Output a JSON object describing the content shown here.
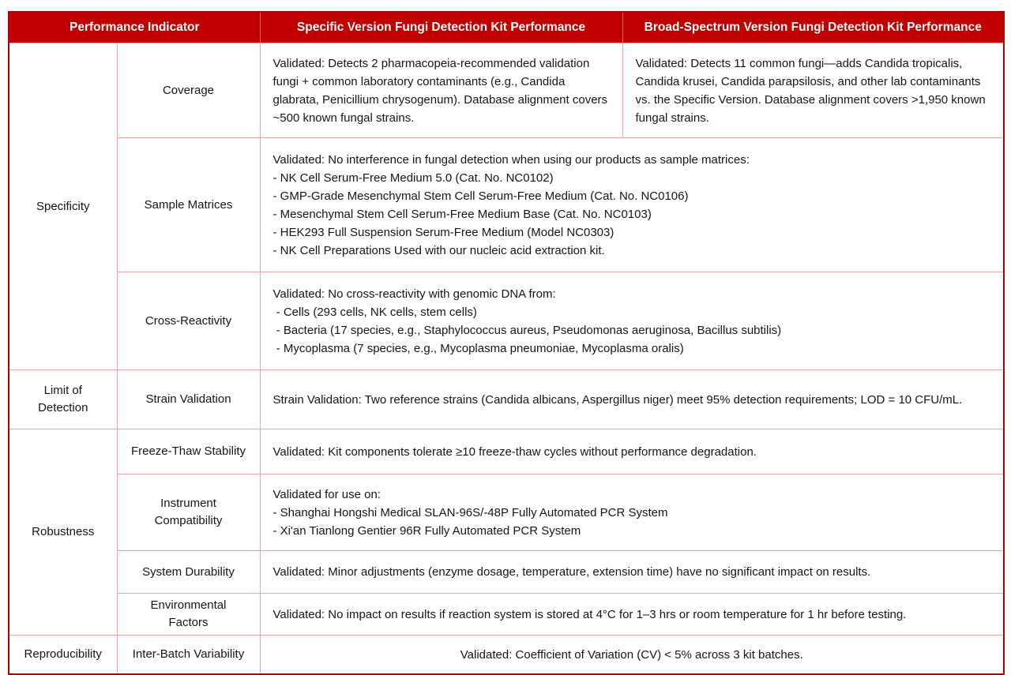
{
  "colors": {
    "header_bg": "#c00000",
    "header_text": "#ffffff",
    "outer_border": "#b00000",
    "inner_border": "#f2a3a3",
    "body_text": "#151515"
  },
  "header": {
    "indicator": "Performance Indicator",
    "specific": "Specific Version Fungi Detection Kit Performance",
    "broad": "Broad-Spectrum Version Fungi Detection Kit Performance"
  },
  "rows": {
    "specificity": {
      "label": "Specificity"
    },
    "coverage": {
      "label": "Coverage",
      "specific": "Validated: Detects 2 pharmacopeia-recommended validation fungi + common laboratory contaminants (e.g., Candida glabrata, Penicillium chrysogenum). Database alignment covers ~500 known fungal strains.",
      "broad": "Validated: Detects 11 common fungi—adds Candida tropicalis, Candida krusei, Candida parapsilosis, and other lab contaminants vs. the Specific Version. Database alignment covers >1,950 known fungal strains."
    },
    "sample_matrices": {
      "label": "Sample Matrices",
      "lines": [
        "Validated: No interference in fungal detection when using our products as sample matrices:",
        "- NK Cell Serum-Free Medium 5.0 (Cat. No. NC0102)",
        "- GMP-Grade Mesenchymal Stem Cell Serum-Free Medium (Cat. No. NC0106)",
        "- Mesenchymal Stem Cell Serum-Free Medium Base (Cat. No. NC0103)",
        "- HEK293 Full Suspension Serum-Free Medium (Model NC0303)",
        "- NK Cell Preparations Used with our nucleic acid extraction kit."
      ]
    },
    "cross_reactivity": {
      "label": "Cross-Reactivity",
      "lines": [
        "Validated: No cross-reactivity with genomic DNA from:",
        " - Cells (293 cells, NK cells, stem cells)",
        " - Bacteria (17 species, e.g., Staphylococcus aureus, Pseudomonas aeruginosa, Bacillus subtilis)",
        " - Mycoplasma (7 species, e.g., Mycoplasma pneumoniae, Mycoplasma oralis)"
      ]
    },
    "limit_of_detection": {
      "label": "Limit of Detection"
    },
    "strain_validation": {
      "label": "Strain Validation",
      "text": "Strain Validation: Two reference strains (Candida albicans, Aspergillus niger) meet 95% detection requirements; LOD = 10 CFU/mL."
    },
    "robustness": {
      "label": "Robustness"
    },
    "freeze_thaw": {
      "label": "Freeze-Thaw Stability",
      "text": "Validated: Kit components tolerate ≥10 freeze-thaw cycles without performance degradation."
    },
    "instrument_compatibility": {
      "label": "Instrument Compatibility",
      "lines": [
        "Validated for use on:",
        "- Shanghai Hongshi Medical SLAN-96S/-48P Fully Automated PCR System",
        "- Xi'an Tianlong Gentier 96R Fully Automated PCR System"
      ]
    },
    "system_durability": {
      "label": "System Durability",
      "text": "Validated: Minor adjustments (enzyme dosage, temperature, extension time) have no significant impact on results."
    },
    "environmental_factors": {
      "label": "Environmental Factors",
      "text": "Validated: No impact on results if reaction system is stored at 4°C for 1–3 hrs or room temperature for 1 hr before testing."
    },
    "reproducibility": {
      "label": "Reproducibility"
    },
    "inter_batch": {
      "label": "Inter-Batch Variability",
      "text": "Validated: Coefficient of Variation (CV) < 5% across 3 kit batches."
    }
  }
}
